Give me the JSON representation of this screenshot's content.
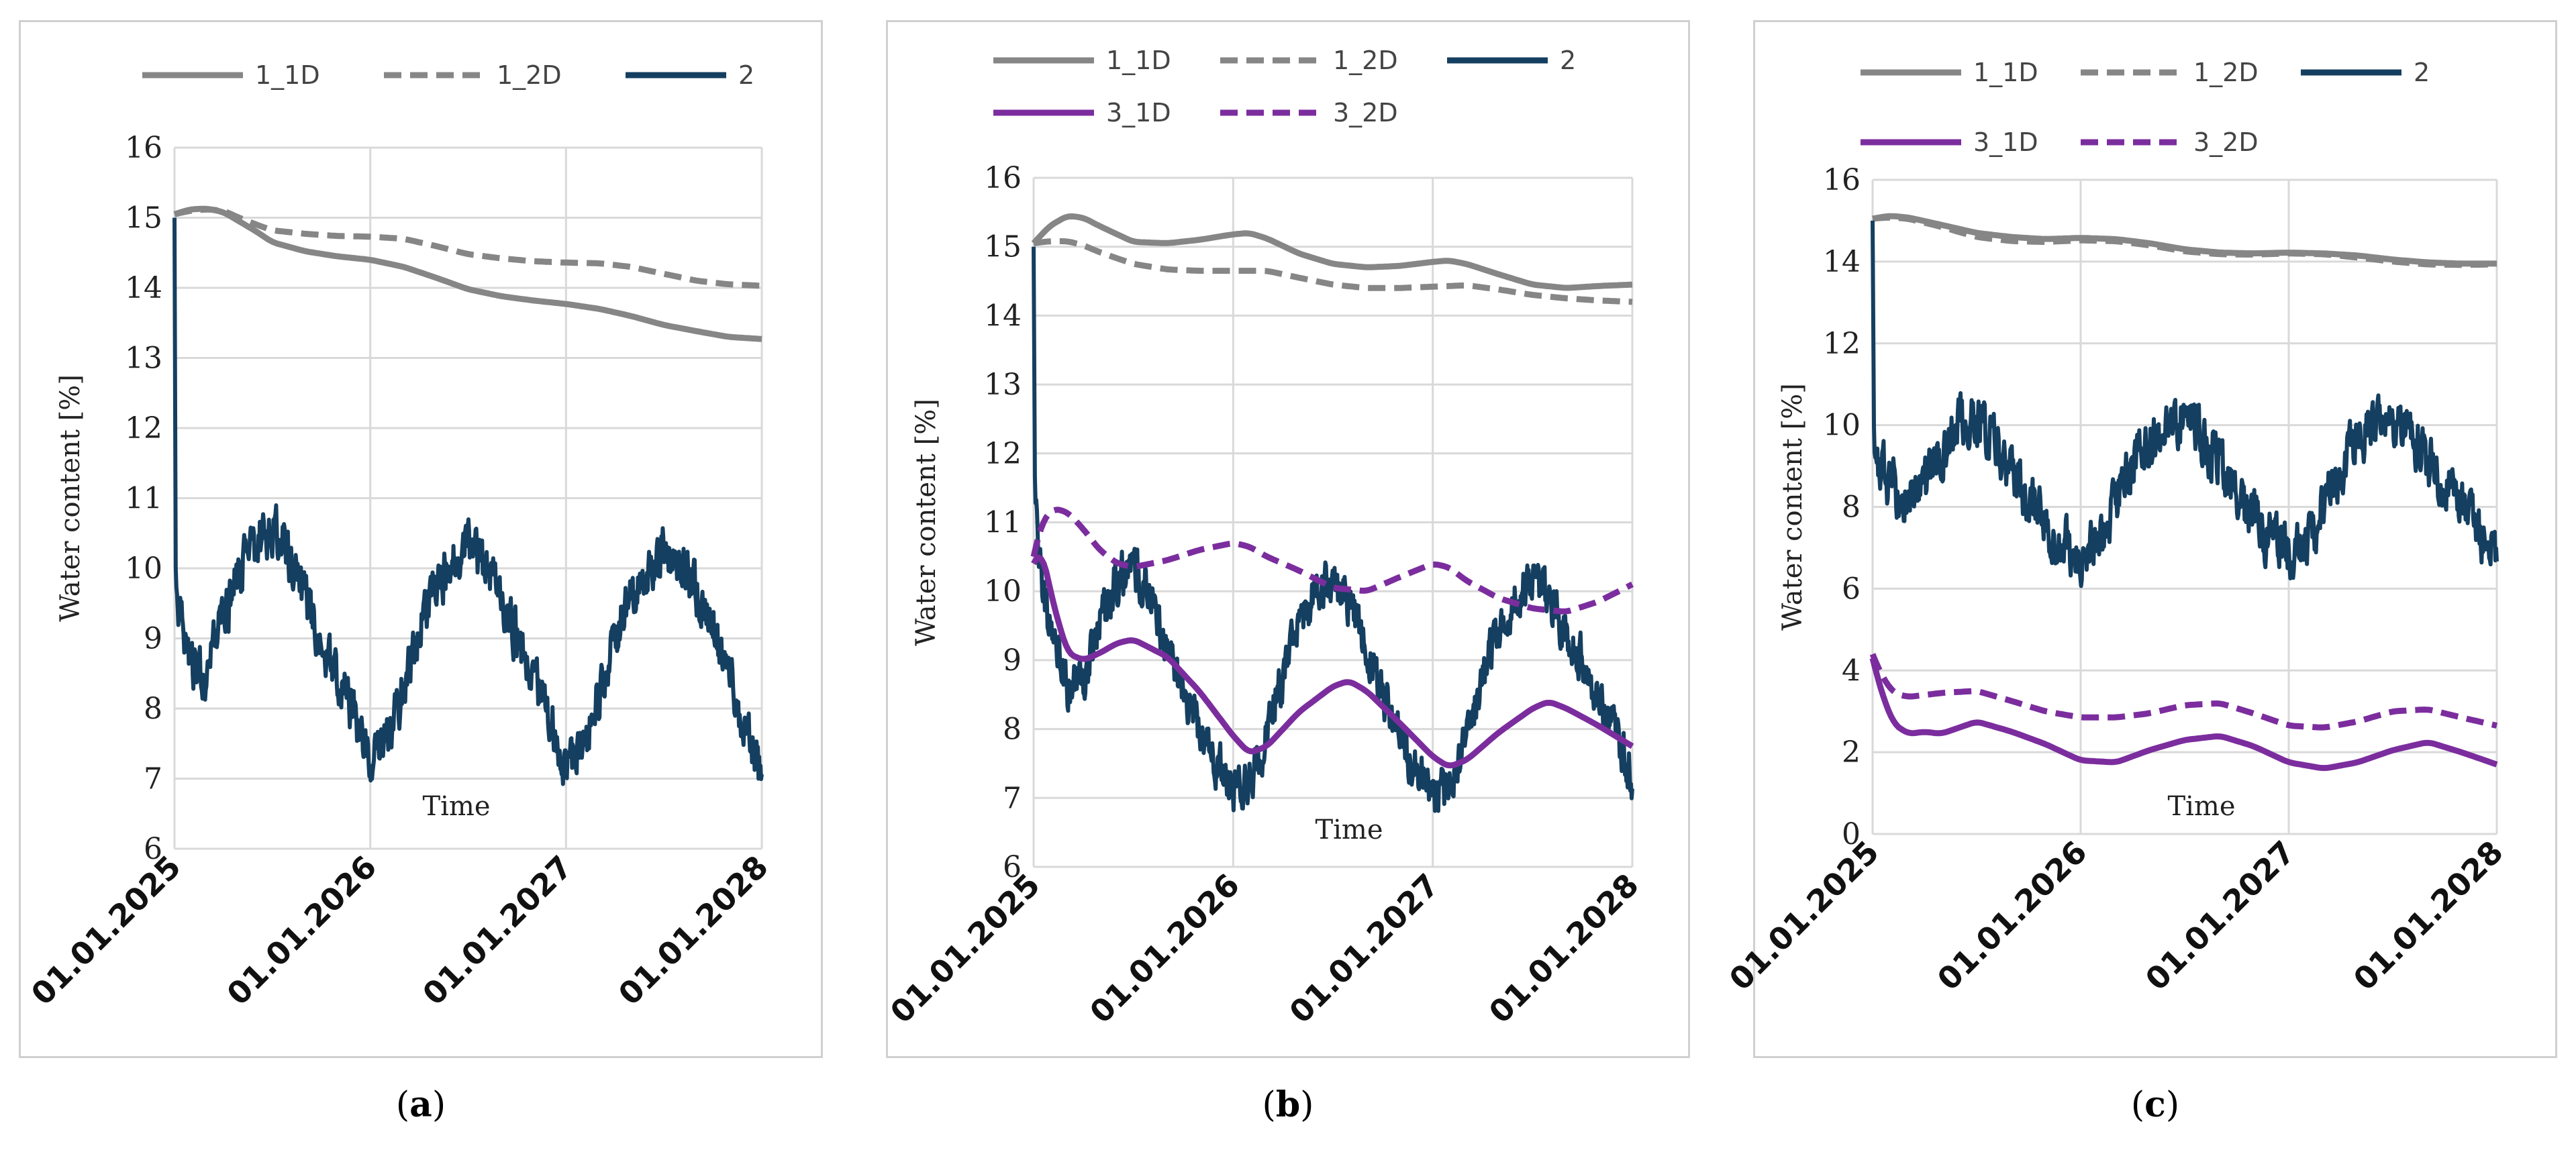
{
  "figure": {
    "captions": [
      {
        "open": "(",
        "letter": "a",
        "close": ")"
      },
      {
        "open": "(",
        "letter": "b",
        "close": ")"
      },
      {
        "open": "(",
        "letter": "c",
        "close": ")"
      }
    ]
  },
  "colors": {
    "gray": "#868686",
    "navy": "#153f60",
    "purple": "#7b2d9e",
    "grid": "#d9d9d9"
  },
  "chart_data": [
    {
      "type": "line",
      "title": "(a)",
      "xlabel": "Time",
      "ylabel": "Water content [%]",
      "ylim": [
        6,
        16
      ],
      "yticks": [
        6,
        7,
        8,
        9,
        10,
        11,
        12,
        13,
        14,
        15,
        16
      ],
      "xlim": [
        2025,
        2028
      ],
      "xtick_labels": [
        "01.01.2025",
        "01.01.2026",
        "01.01.2027",
        "01.01.2028"
      ],
      "legend_rows": [
        [
          "1_1D",
          "1_2D",
          "2"
        ]
      ],
      "series": [
        {
          "name": "1_1D",
          "color": "gray",
          "dash": false,
          "x": [
            2025.0,
            2025.08,
            2025.17,
            2025.25,
            2025.33,
            2025.42,
            2025.5,
            2025.67,
            2025.83,
            2026.0,
            2026.17,
            2026.33,
            2026.5,
            2026.67,
            2026.83,
            2027.0,
            2027.17,
            2027.33,
            2027.5,
            2027.67,
            2027.83,
            2028.0
          ],
          "y": [
            15.05,
            15.12,
            15.13,
            15.08,
            14.95,
            14.8,
            14.65,
            14.52,
            14.45,
            14.4,
            14.3,
            14.15,
            13.98,
            13.88,
            13.82,
            13.77,
            13.7,
            13.6,
            13.47,
            13.38,
            13.3,
            13.27
          ]
        },
        {
          "name": "1_2D",
          "color": "gray",
          "dash": true,
          "x": [
            2025.0,
            2025.08,
            2025.17,
            2025.25,
            2025.33,
            2025.42,
            2025.5,
            2025.67,
            2025.83,
            2026.0,
            2026.17,
            2026.33,
            2026.5,
            2026.67,
            2026.83,
            2027.0,
            2027.17,
            2027.33,
            2027.5,
            2027.67,
            2027.83,
            2028.0
          ],
          "y": [
            15.05,
            15.1,
            15.12,
            15.1,
            15.0,
            14.9,
            14.82,
            14.77,
            14.74,
            14.73,
            14.7,
            14.6,
            14.48,
            14.42,
            14.38,
            14.36,
            14.35,
            14.3,
            14.2,
            14.1,
            14.05,
            14.03
          ]
        },
        {
          "name": "2",
          "color": "navy",
          "dash": false,
          "noise": 0.3,
          "x": [
            2025.0,
            2025.002,
            2025.01,
            2025.08,
            2025.17,
            2025.25,
            2025.33,
            2025.42,
            2025.5,
            2025.6,
            2025.75,
            2025.9,
            2026.0,
            2026.1,
            2026.2,
            2026.3,
            2026.42,
            2026.5,
            2026.6,
            2026.75,
            2026.9,
            2027.0,
            2027.1,
            2027.2,
            2027.3,
            2027.42,
            2027.5,
            2027.6,
            2027.75,
            2027.9,
            2028.0
          ],
          "y": [
            15.0,
            10.2,
            9.6,
            8.5,
            8.6,
            9.3,
            9.9,
            10.4,
            10.6,
            10.1,
            9.0,
            8.0,
            7.3,
            7.6,
            8.6,
            9.5,
            10.1,
            10.3,
            10.0,
            9.0,
            8.0,
            7.2,
            7.5,
            8.5,
            9.4,
            10.0,
            10.3,
            10.0,
            9.2,
            7.8,
            7.0
          ]
        }
      ]
    },
    {
      "type": "line",
      "title": "(b)",
      "xlabel": "Time",
      "ylabel": "Water content [%]",
      "ylim": [
        6,
        16
      ],
      "yticks": [
        6,
        7,
        8,
        9,
        10,
        11,
        12,
        13,
        14,
        15,
        16
      ],
      "xlim": [
        2025,
        2028
      ],
      "xtick_labels": [
        "01.01.2025",
        "01.01.2026",
        "01.01.2027",
        "01.01.2028"
      ],
      "legend_rows": [
        [
          "1_1D",
          "1_2D",
          "2"
        ],
        [
          "3_1D",
          "3_2D"
        ]
      ],
      "series": [
        {
          "name": "1_1D",
          "color": "gray",
          "dash": false,
          "x": [
            2025.0,
            2025.08,
            2025.17,
            2025.25,
            2025.33,
            2025.5,
            2025.67,
            2025.83,
            2026.0,
            2026.08,
            2026.17,
            2026.33,
            2026.5,
            2026.67,
            2026.83,
            2027.0,
            2027.08,
            2027.17,
            2027.33,
            2027.5,
            2027.67,
            2027.83,
            2028.0
          ],
          "y": [
            15.05,
            15.3,
            15.45,
            15.42,
            15.3,
            15.07,
            15.05,
            15.1,
            15.18,
            15.2,
            15.12,
            14.9,
            14.75,
            14.7,
            14.72,
            14.78,
            14.8,
            14.75,
            14.6,
            14.45,
            14.4,
            14.43,
            14.45
          ]
        },
        {
          "name": "1_2D",
          "color": "gray",
          "dash": true,
          "x": [
            2025.0,
            2025.08,
            2025.17,
            2025.25,
            2025.33,
            2025.5,
            2025.67,
            2025.83,
            2026.0,
            2026.17,
            2026.33,
            2026.5,
            2026.67,
            2026.83,
            2027.0,
            2027.17,
            2027.33,
            2027.5,
            2027.67,
            2027.83,
            2028.0
          ],
          "y": [
            15.05,
            15.08,
            15.08,
            15.02,
            14.92,
            14.75,
            14.67,
            14.65,
            14.65,
            14.65,
            14.55,
            14.45,
            14.4,
            14.4,
            14.42,
            14.44,
            14.38,
            14.3,
            14.25,
            14.22,
            14.2
          ]
        },
        {
          "name": "2",
          "color": "navy",
          "dash": false,
          "noise": 0.28,
          "x": [
            2025.0,
            2025.002,
            2025.02,
            2025.08,
            2025.17,
            2025.25,
            2025.33,
            2025.42,
            2025.5,
            2025.6,
            2025.75,
            2025.9,
            2026.0,
            2026.1,
            2026.2,
            2026.3,
            2026.42,
            2026.5,
            2026.6,
            2026.75,
            2026.9,
            2027.0,
            2027.1,
            2027.2,
            2027.3,
            2027.42,
            2027.5,
            2027.6,
            2027.75,
            2027.9,
            2028.0
          ],
          "y": [
            15.0,
            11.8,
            10.6,
            9.5,
            8.6,
            8.7,
            9.5,
            10.2,
            10.4,
            9.8,
            8.6,
            7.6,
            7.1,
            7.3,
            8.3,
            9.3,
            10.0,
            10.2,
            9.7,
            8.5,
            7.5,
            7.0,
            7.2,
            8.2,
            9.2,
            9.9,
            10.2,
            9.8,
            9.0,
            8.0,
            7.3
          ]
        },
        {
          "name": "3_1D",
          "color": "purple",
          "dash": false,
          "x": [
            2025.0,
            2025.04,
            2025.1,
            2025.17,
            2025.25,
            2025.33,
            2025.42,
            2025.5,
            2025.67,
            2025.83,
            2026.0,
            2026.08,
            2026.17,
            2026.33,
            2026.5,
            2026.58,
            2026.67,
            2026.83,
            2027.0,
            2027.08,
            2027.17,
            2027.33,
            2027.5,
            2027.58,
            2027.67,
            2027.83,
            2028.0
          ],
          "y": [
            10.4,
            10.6,
            9.8,
            9.1,
            9.0,
            9.1,
            9.25,
            9.3,
            9.05,
            8.55,
            7.9,
            7.65,
            7.75,
            8.25,
            8.62,
            8.7,
            8.55,
            8.1,
            7.6,
            7.45,
            7.55,
            7.95,
            8.3,
            8.4,
            8.3,
            8.05,
            7.75
          ]
        },
        {
          "name": "3_2D",
          "color": "purple",
          "dash": true,
          "x": [
            2025.0,
            2025.04,
            2025.1,
            2025.17,
            2025.25,
            2025.33,
            2025.42,
            2025.5,
            2025.67,
            2025.83,
            2026.0,
            2026.08,
            2026.17,
            2026.33,
            2026.5,
            2026.67,
            2026.83,
            2027.0,
            2027.08,
            2027.17,
            2027.33,
            2027.5,
            2027.67,
            2027.83,
            2028.0
          ],
          "y": [
            10.5,
            11.0,
            11.2,
            11.15,
            10.9,
            10.6,
            10.4,
            10.35,
            10.45,
            10.6,
            10.7,
            10.65,
            10.5,
            10.3,
            10.05,
            10.0,
            10.2,
            10.4,
            10.35,
            10.15,
            9.9,
            9.75,
            9.7,
            9.85,
            10.1
          ]
        }
      ]
    },
    {
      "type": "line",
      "title": "(c)",
      "xlabel": "Time",
      "ylabel": "Water content [%]",
      "ylim": [
        0,
        16
      ],
      "yticks": [
        0,
        2,
        4,
        6,
        8,
        10,
        12,
        14,
        16
      ],
      "xlim": [
        2025,
        2028
      ],
      "xtick_labels": [
        "01.01.2025",
        "01.01.2026",
        "01.01.2027",
        "01.01.2028"
      ],
      "legend_rows": [
        [
          "1_1D",
          "1_2D",
          "2"
        ],
        [
          "3_1D",
          "3_2D"
        ]
      ],
      "series": [
        {
          "name": "1_1D",
          "color": "gray",
          "dash": false,
          "x": [
            2025.0,
            2025.08,
            2025.17,
            2025.33,
            2025.5,
            2025.67,
            2025.83,
            2026.0,
            2026.17,
            2026.33,
            2026.5,
            2026.67,
            2026.83,
            2027.0,
            2027.17,
            2027.33,
            2027.5,
            2027.67,
            2027.83,
            2028.0
          ],
          "y": [
            15.05,
            15.12,
            15.08,
            14.9,
            14.7,
            14.6,
            14.55,
            14.58,
            14.55,
            14.45,
            14.3,
            14.22,
            14.2,
            14.22,
            14.2,
            14.15,
            14.05,
            13.98,
            13.95,
            13.95
          ]
        },
        {
          "name": "1_2D",
          "color": "gray",
          "dash": true,
          "x": [
            2025.0,
            2025.08,
            2025.17,
            2025.33,
            2025.5,
            2025.67,
            2025.83,
            2026.0,
            2026.17,
            2026.33,
            2026.5,
            2026.67,
            2026.83,
            2027.0,
            2027.17,
            2027.33,
            2027.5,
            2027.67,
            2027.83,
            2028.0
          ],
          "y": [
            15.05,
            15.08,
            15.05,
            14.85,
            14.6,
            14.5,
            14.48,
            14.52,
            14.5,
            14.4,
            14.25,
            14.18,
            14.17,
            14.2,
            14.18,
            14.1,
            14.0,
            13.93,
            13.92,
            13.93
          ]
        },
        {
          "name": "2",
          "color": "navy",
          "dash": false,
          "noise": 0.55,
          "x": [
            2025.0,
            2025.002,
            2025.02,
            2025.08,
            2025.17,
            2025.25,
            2025.33,
            2025.42,
            2025.5,
            2025.6,
            2025.75,
            2025.9,
            2026.0,
            2026.1,
            2026.2,
            2026.3,
            2026.42,
            2026.5,
            2026.6,
            2026.75,
            2026.9,
            2027.0,
            2027.1,
            2027.2,
            2027.3,
            2027.42,
            2027.5,
            2027.6,
            2027.75,
            2027.9,
            2028.0
          ],
          "y": [
            15.0,
            9.8,
            9.2,
            8.5,
            8.2,
            8.5,
            9.4,
            10.1,
            10.2,
            9.5,
            8.2,
            7.2,
            6.8,
            7.2,
            8.5,
            9.5,
            10.1,
            10.2,
            9.6,
            8.3,
            7.2,
            6.8,
            7.2,
            8.4,
            9.4,
            10.0,
            10.1,
            9.6,
            8.5,
            7.5,
            6.8
          ]
        },
        {
          "name": "3_1D",
          "color": "purple",
          "dash": false,
          "x": [
            2025.0,
            2025.04,
            2025.1,
            2025.17,
            2025.25,
            2025.33,
            2025.5,
            2025.67,
            2025.83,
            2026.0,
            2026.17,
            2026.33,
            2026.5,
            2026.67,
            2026.83,
            2027.0,
            2027.17,
            2027.33,
            2027.5,
            2027.67,
            2027.83,
            2028.0
          ],
          "y": [
            4.3,
            3.5,
            2.7,
            2.45,
            2.5,
            2.45,
            2.75,
            2.5,
            2.2,
            1.8,
            1.75,
            2.05,
            2.3,
            2.4,
            2.15,
            1.75,
            1.6,
            1.75,
            2.05,
            2.25,
            2.0,
            1.7
          ]
        },
        {
          "name": "3_2D",
          "color": "purple",
          "dash": true,
          "x": [
            2025.0,
            2025.04,
            2025.1,
            2025.17,
            2025.25,
            2025.33,
            2025.5,
            2025.67,
            2025.83,
            2026.0,
            2026.17,
            2026.33,
            2026.5,
            2026.67,
            2026.83,
            2027.0,
            2027.17,
            2027.33,
            2027.5,
            2027.67,
            2027.83,
            2028.0
          ],
          "y": [
            4.4,
            3.9,
            3.45,
            3.35,
            3.4,
            3.45,
            3.5,
            3.25,
            3.0,
            2.85,
            2.85,
            2.95,
            3.15,
            3.2,
            2.95,
            2.65,
            2.6,
            2.75,
            3.0,
            3.05,
            2.85,
            2.65
          ]
        }
      ]
    }
  ]
}
